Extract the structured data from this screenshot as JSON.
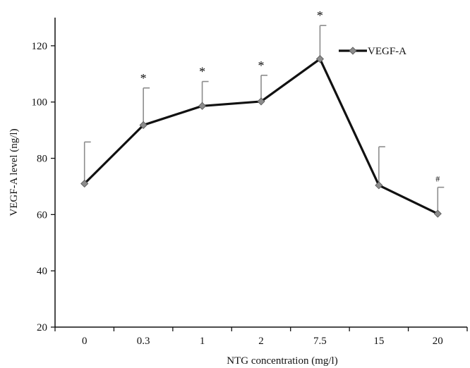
{
  "chart_data": {
    "type": "line",
    "title": "",
    "xlabel": "NTG concentration (mg/l)",
    "ylabel": "VEGF-A level (ng/l)",
    "categories": [
      "0",
      "0.3",
      "1",
      "2",
      "7.5",
      "15",
      "20"
    ],
    "ylim": [
      20,
      130
    ],
    "yticks": [
      20,
      40,
      60,
      80,
      100,
      120
    ],
    "grid": false,
    "legend": {
      "position": "top-right"
    },
    "series": [
      {
        "name": "VEGF-A",
        "values": [
          71,
          91.8,
          98.6,
          100.2,
          115.3,
          70.4,
          60.3
        ],
        "error_upper": [
          85.8,
          105,
          107.3,
          109.5,
          127.2,
          84.1,
          69.7
        ],
        "color": "#111111",
        "marker_color": "#8c8c8c",
        "error_color": "#8c8c8c"
      }
    ],
    "annotations": [
      "",
      "*",
      "*",
      "*",
      "*",
      "",
      "#"
    ]
  }
}
